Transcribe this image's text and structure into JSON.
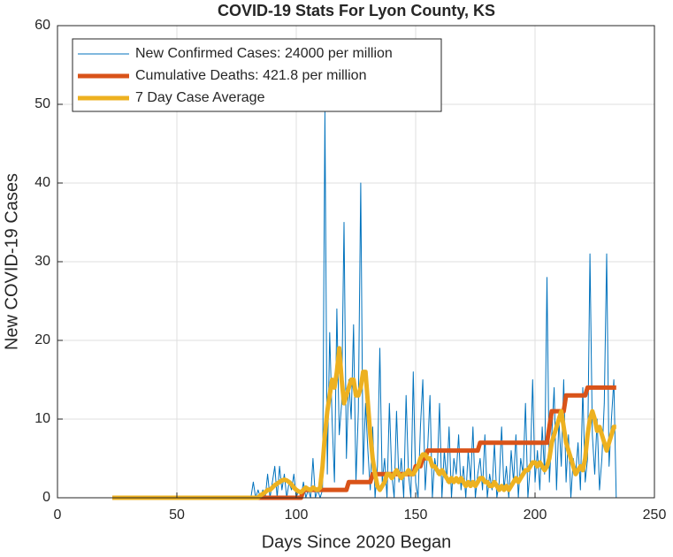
{
  "chart_data": {
    "type": "line",
    "title": "COVID-19 Stats For Lyon County, KS",
    "x_label": "Days Since 2020 Began",
    "y_label": "New COVID-19 Cases",
    "xlim": [
      0,
      250
    ],
    "xticks": [
      0,
      50,
      100,
      150,
      200,
      250
    ],
    "ylim": [
      0,
      60
    ],
    "yticks": [
      0,
      10,
      20,
      30,
      40,
      50,
      60
    ],
    "grid": true,
    "legend_position": "upper-left",
    "x": [
      23,
      24,
      25,
      26,
      27,
      28,
      29,
      30,
      31,
      32,
      33,
      34,
      35,
      36,
      37,
      38,
      39,
      40,
      41,
      42,
      43,
      44,
      45,
      46,
      47,
      48,
      49,
      50,
      51,
      52,
      53,
      54,
      55,
      56,
      57,
      58,
      59,
      60,
      61,
      62,
      63,
      64,
      65,
      66,
      67,
      68,
      69,
      70,
      71,
      72,
      73,
      74,
      75,
      76,
      77,
      78,
      79,
      80,
      81,
      82,
      83,
      84,
      85,
      86,
      87,
      88,
      89,
      90,
      91,
      92,
      93,
      94,
      95,
      96,
      97,
      98,
      99,
      100,
      101,
      102,
      103,
      104,
      105,
      106,
      107,
      108,
      109,
      110,
      111,
      112,
      113,
      114,
      115,
      116,
      117,
      118,
      119,
      120,
      121,
      122,
      123,
      124,
      125,
      126,
      127,
      128,
      129,
      130,
      131,
      132,
      133,
      134,
      135,
      136,
      137,
      138,
      139,
      140,
      141,
      142,
      143,
      144,
      145,
      146,
      147,
      148,
      149,
      150,
      151,
      152,
      153,
      154,
      155,
      156,
      157,
      158,
      159,
      160,
      161,
      162,
      163,
      164,
      165,
      166,
      167,
      168,
      169,
      170,
      171,
      172,
      173,
      174,
      175,
      176,
      177,
      178,
      179,
      180,
      181,
      182,
      183,
      184,
      185,
      186,
      187,
      188,
      189,
      190,
      191,
      192,
      193,
      194,
      195,
      196,
      197,
      198,
      199,
      200,
      201,
      202,
      203,
      204,
      205,
      206,
      207,
      208,
      209,
      210,
      211,
      212,
      213,
      214,
      215,
      216,
      217,
      218,
      219,
      220,
      221,
      222,
      223,
      224,
      225,
      226,
      227,
      228,
      229,
      230,
      231,
      232,
      233,
      234
    ],
    "series": [
      {
        "name": "New Confirmed Cases: 24000 per million",
        "color": "#0072BD",
        "width": 1,
        "values": [
          0,
          0,
          0,
          0,
          0,
          0,
          0,
          0,
          0,
          0,
          0,
          0,
          0,
          0,
          0,
          0,
          0,
          0,
          0,
          0,
          0,
          0,
          0,
          0,
          0,
          0,
          0,
          0,
          0,
          0,
          0,
          0,
          0,
          0,
          0,
          0,
          0,
          0,
          0,
          0,
          0,
          0,
          0,
          0,
          0,
          0,
          0,
          0,
          0,
          0,
          0,
          0,
          0,
          0,
          0,
          0,
          0,
          0,
          0,
          2,
          0,
          1,
          0,
          1,
          0,
          3,
          0,
          2,
          4,
          0,
          4,
          1,
          3,
          0,
          2,
          1,
          3,
          0,
          1,
          0,
          2,
          0,
          1,
          0,
          5,
          0,
          1,
          0,
          1,
          49,
          3,
          21,
          10,
          2,
          24,
          8,
          12,
          35,
          5,
          15,
          10,
          22,
          2,
          11,
          40,
          3,
          12,
          6,
          1,
          9,
          0,
          4,
          19,
          2,
          5,
          0,
          12,
          3,
          0,
          11,
          2,
          5,
          0,
          13,
          3,
          0,
          16,
          2,
          0,
          9,
          15,
          1,
          6,
          13,
          0,
          5,
          3,
          12,
          0,
          6,
          2,
          9,
          0,
          5,
          3,
          8,
          1,
          4,
          0,
          6,
          2,
          9,
          0,
          3,
          5,
          1,
          8,
          0,
          3,
          1,
          7,
          0,
          2,
          9,
          1,
          4,
          0,
          6,
          2,
          8,
          0,
          5,
          3,
          12,
          0,
          4,
          15,
          2,
          6,
          1,
          9,
          3,
          28,
          2,
          8,
          14,
          1,
          10,
          4,
          15,
          2,
          8,
          0,
          5,
          3,
          7,
          1,
          14,
          2,
          5,
          31,
          8,
          3,
          10,
          1,
          5,
          12,
          31,
          4,
          10,
          15,
          0
        ]
      },
      {
        "name": "Cumulative Deaths: 421.8 per million",
        "color": "#D95319",
        "width": 5,
        "values": [
          0,
          0,
          0,
          0,
          0,
          0,
          0,
          0,
          0,
          0,
          0,
          0,
          0,
          0,
          0,
          0,
          0,
          0,
          0,
          0,
          0,
          0,
          0,
          0,
          0,
          0,
          0,
          0,
          0,
          0,
          0,
          0,
          0,
          0,
          0,
          0,
          0,
          0,
          0,
          0,
          0,
          0,
          0,
          0,
          0,
          0,
          0,
          0,
          0,
          0,
          0,
          0,
          0,
          0,
          0,
          0,
          0,
          0,
          0,
          0,
          0,
          0,
          0,
          0,
          0,
          0,
          0,
          0,
          0,
          0,
          0,
          0,
          0,
          0,
          0,
          0,
          0,
          0,
          0,
          0,
          1,
          1,
          1,
          1,
          1,
          1,
          1,
          1,
          1,
          1,
          1,
          1,
          1,
          1,
          1,
          1,
          1,
          1,
          1,
          2,
          2,
          2,
          2,
          2,
          2,
          2,
          2,
          2,
          2,
          3,
          3,
          3,
          3,
          3,
          3,
          3,
          3,
          3,
          3,
          3,
          3,
          3,
          3,
          3,
          3,
          3,
          3,
          4,
          4,
          4,
          5,
          5,
          6,
          6,
          6,
          6,
          6,
          6,
          6,
          6,
          6,
          6,
          6,
          6,
          6,
          6,
          6,
          6,
          6,
          6,
          6,
          6,
          6,
          6,
          7,
          7,
          7,
          7,
          7,
          7,
          7,
          7,
          7,
          7,
          7,
          7,
          7,
          7,
          7,
          7,
          7,
          7,
          7,
          7,
          7,
          7,
          7,
          7,
          7,
          7,
          7,
          7,
          7,
          9,
          11,
          11,
          11,
          11,
          11,
          11,
          13,
          13,
          13,
          13,
          13,
          13,
          13,
          13,
          13,
          14,
          14,
          14,
          14,
          14,
          14,
          14,
          14,
          14,
          14,
          14,
          14,
          14
        ]
      },
      {
        "name": "7 Day Case Average",
        "color": "#EDB120",
        "width": 5,
        "values": [
          0,
          0,
          0,
          0,
          0,
          0,
          0,
          0,
          0,
          0,
          0,
          0,
          0,
          0,
          0,
          0,
          0,
          0,
          0,
          0,
          0,
          0,
          0,
          0,
          0,
          0,
          0,
          0,
          0,
          0,
          0,
          0,
          0,
          0,
          0,
          0,
          0,
          0,
          0,
          0,
          0,
          0,
          0,
          0,
          0,
          0,
          0,
          0,
          0,
          0,
          0,
          0,
          0,
          0,
          0,
          0,
          0,
          0,
          0,
          0,
          0,
          0,
          0.3,
          0.5,
          0.7,
          1,
          1,
          1.3,
          1.6,
          1.8,
          2,
          2.2,
          2.3,
          2.2,
          2,
          1.7,
          1.3,
          1,
          0.8,
          0.7,
          1,
          1.3,
          1.1,
          1,
          1.3,
          1.1,
          1,
          1.3,
          4,
          8,
          11,
          13,
          15,
          14,
          16,
          19,
          15,
          12,
          13,
          14,
          15,
          15,
          13,
          13,
          14,
          16,
          16,
          12,
          8,
          5,
          3,
          1.5,
          1,
          1.5,
          2,
          3,
          3,
          2.5,
          3,
          3.5,
          3,
          2.5,
          3,
          3,
          3.5,
          3,
          3,
          3.5,
          4,
          5,
          5.5,
          5.5,
          5,
          5,
          4,
          4,
          3.5,
          3,
          3.5,
          3,
          2.5,
          2,
          2.5,
          2,
          2.5,
          2,
          2.5,
          2,
          1.5,
          2,
          1.5,
          2,
          1.5,
          2,
          2.5,
          2.5,
          2,
          2,
          1.5,
          1.5,
          2,
          1.5,
          1,
          1.5,
          1,
          1.5,
          1,
          1.5,
          2,
          2.5,
          2,
          2.5,
          3,
          3.5,
          3.5,
          4,
          4.5,
          4.5,
          4,
          4.5,
          4,
          3.5,
          4,
          5,
          7,
          8,
          9,
          10,
          11,
          9,
          7,
          6,
          5,
          4,
          3,
          3.5,
          4,
          3.5,
          5,
          8,
          10,
          11,
          10,
          8.5,
          9,
          8,
          7,
          6,
          7,
          8,
          9,
          9
        ]
      }
    ]
  }
}
